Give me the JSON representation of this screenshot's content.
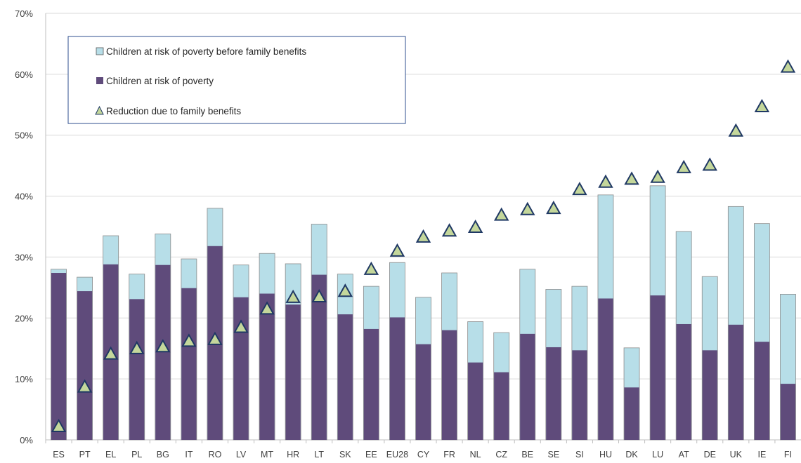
{
  "chart_data": {
    "type": "bar",
    "stacked_overlay": true,
    "categories": [
      "ES",
      "PT",
      "EL",
      "PL",
      "BG",
      "IT",
      "RO",
      "LV",
      "MT",
      "HR",
      "LT",
      "SK",
      "EE",
      "EU28",
      "CY",
      "FR",
      "NL",
      "CZ",
      "BE",
      "SE",
      "SI",
      "HU",
      "DK",
      "LU",
      "AT",
      "DE",
      "UK",
      "IE",
      "FI"
    ],
    "series": [
      {
        "name": "Children at risk of poverty before family benefits",
        "kind": "bar",
        "color": "#b7dee8",
        "values": [
          28.0,
          26.7,
          33.5,
          27.2,
          33.8,
          29.7,
          38.0,
          28.7,
          30.6,
          28.9,
          35.4,
          27.2,
          25.2,
          29.1,
          23.4,
          27.4,
          19.4,
          17.6,
          28.0,
          24.7,
          25.2,
          40.2,
          15.1,
          41.7,
          34.2,
          26.8,
          38.3,
          35.5,
          23.9
        ]
      },
      {
        "name": "Children at risk of poverty",
        "kind": "bar",
        "color": "#5f4b7b",
        "values": [
          27.4,
          24.4,
          28.8,
          23.1,
          28.7,
          24.9,
          31.8,
          23.4,
          24.0,
          22.2,
          27.1,
          20.6,
          18.2,
          20.1,
          15.7,
          18.0,
          12.7,
          11.1,
          17.4,
          15.2,
          14.7,
          23.2,
          8.6,
          23.7,
          19.0,
          14.7,
          18.9,
          16.1,
          9.2
        ]
      },
      {
        "name": "Reduction due to family benefits",
        "kind": "marker",
        "color": "#c4d79b",
        "values": [
          2.3,
          8.8,
          14.2,
          15.1,
          15.4,
          16.3,
          16.6,
          18.6,
          21.6,
          23.5,
          23.6,
          24.5,
          28.1,
          31.1,
          33.4,
          34.4,
          35.0,
          37.0,
          37.9,
          38.1,
          41.2,
          42.4,
          42.9,
          43.2,
          44.8,
          45.2,
          50.8,
          54.8,
          61.3
        ]
      }
    ],
    "title": "",
    "xlabel": "",
    "ylabel": "",
    "ylim": [
      0,
      70
    ],
    "yticks": [
      "0%",
      "10%",
      "20%",
      "30%",
      "40%",
      "50%",
      "60%",
      "70%"
    ],
    "grid": true,
    "legend": "top-left"
  }
}
